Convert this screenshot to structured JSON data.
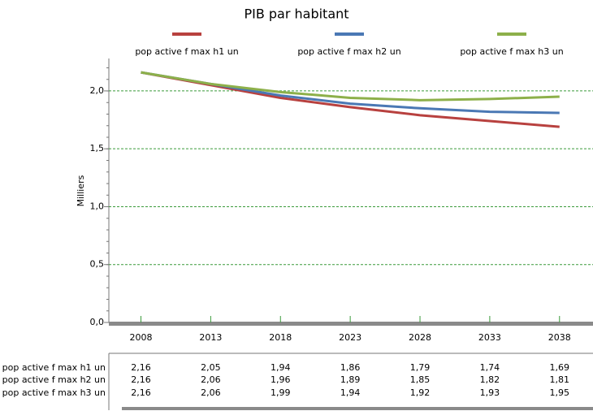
{
  "chart_data": {
    "type": "line",
    "title": "PIB par habitant",
    "y_label": "Milliers",
    "x": [
      2008,
      2013,
      2018,
      2023,
      2028,
      2033,
      2038
    ],
    "xlim": [
      2005.7,
      2040.4
    ],
    "xticks": [
      2008,
      2013,
      2018,
      2023,
      2028,
      2033,
      2038
    ],
    "ylim": [
      0,
      2.28
    ],
    "yticks": [
      {
        "value": 0,
        "label": "0,0"
      },
      {
        "value": 0.5,
        "label": "0,5"
      },
      {
        "value": 1.0,
        "label": "1,0"
      },
      {
        "value": 1.5,
        "label": "1,5"
      },
      {
        "value": 2.0,
        "label": "2,0"
      }
    ],
    "grid": true,
    "series": [
      {
        "name": "pop active f max h1 un",
        "color": "#b8413f",
        "values": [
          2.16,
          2.05,
          1.94,
          1.86,
          1.79,
          1.74,
          1.69
        ],
        "value_labels": [
          "2,16",
          "2,05",
          "1,94",
          "1,86",
          "1,79",
          "1,74",
          "1,69"
        ]
      },
      {
        "name": "pop active f max h2 un",
        "color": "#4a78b4",
        "values": [
          2.16,
          2.06,
          1.96,
          1.89,
          1.85,
          1.82,
          1.81
        ],
        "value_labels": [
          "2,16",
          "2,06",
          "1,96",
          "1,89",
          "1,85",
          "1,82",
          "1,81"
        ]
      },
      {
        "name": "pop active f max h3 un",
        "color": "#8db04a",
        "values": [
          2.16,
          2.06,
          1.99,
          1.94,
          1.92,
          1.93,
          1.95
        ],
        "value_labels": [
          "2,16",
          "2,06",
          "1,99",
          "1,94",
          "1,92",
          "1,93",
          "1,95"
        ]
      }
    ]
  }
}
